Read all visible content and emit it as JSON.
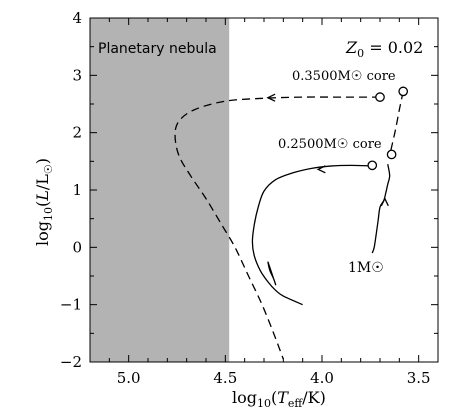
{
  "chart_data": {
    "type": "line",
    "xlabel": "log10(Teff/K)",
    "ylabel": "log10(L/L☉)",
    "xlim": [
      5.2,
      3.4
    ],
    "ylim": [
      -2,
      4
    ],
    "x_reversed": true,
    "xticks": [
      5.0,
      4.5,
      4.0,
      3.5
    ],
    "xtick_labels": [
      "5.0",
      "4.5",
      "4.0",
      "3.5"
    ],
    "yticks": [
      -2,
      -1,
      0,
      1,
      2,
      3,
      4
    ],
    "ytick_labels": [
      "−2",
      "−1",
      "0",
      "1",
      "2",
      "3",
      "4"
    ],
    "shaded_region": {
      "label": "Planetary nebula",
      "x_from": 5.2,
      "x_to": 4.48,
      "color": "#b3b3b3"
    },
    "top_right_label": "Z0 = 0.02",
    "series": [
      {
        "name": "1M☉",
        "style": "solid",
        "x": [
          3.74,
          3.73,
          3.72,
          3.71,
          3.7,
          3.68,
          3.67,
          3.66,
          3.65,
          3.66
        ],
        "y": [
          -0.1,
          0.0,
          0.22,
          0.46,
          0.7,
          0.82,
          0.95,
          1.1,
          1.25,
          1.45
        ]
      },
      {
        "name": "0.2500M☉ core",
        "style": "solid",
        "x": [
          3.75,
          3.85,
          3.95,
          4.05,
          4.15,
          4.24,
          4.3,
          4.33,
          4.35,
          4.36,
          4.35,
          4.32,
          4.28,
          4.24,
          4.2,
          4.1
        ],
        "y": [
          1.42,
          1.43,
          1.42,
          1.38,
          1.3,
          1.18,
          0.98,
          0.7,
          0.4,
          0.1,
          -0.15,
          -0.4,
          -0.6,
          -0.75,
          -0.85,
          -1.0
        ]
      },
      {
        "name": "loop",
        "style": "solid",
        "x": [
          4.28,
          4.26,
          4.24,
          4.25,
          4.27,
          4.28
        ],
        "y": [
          -0.25,
          -0.45,
          -0.65,
          -0.55,
          -0.4,
          -0.25
        ]
      },
      {
        "name": "0.3500M☉ core",
        "style": "dashed",
        "x": [
          3.7,
          3.9,
          4.1,
          4.3,
          4.5,
          4.66,
          4.74,
          4.76,
          4.74,
          4.68,
          4.6,
          4.52,
          4.45,
          4.38,
          4.31,
          4.25,
          4.2
        ],
        "y": [
          2.62,
          2.62,
          2.62,
          2.6,
          2.55,
          2.4,
          2.2,
          1.95,
          1.6,
          1.25,
          0.85,
          0.4,
          0.0,
          -0.5,
          -1.0,
          -1.5,
          -1.95
        ]
      },
      {
        "name": "branch",
        "style": "dashed",
        "x": [
          3.58,
          3.6,
          3.62,
          3.64,
          3.65
        ],
        "y": [
          2.72,
          2.4,
          2.05,
          1.75,
          1.6
        ]
      }
    ],
    "points": [
      {
        "label": "0.3500M☉ core",
        "x": 3.7,
        "y": 2.62
      },
      {
        "label": "",
        "x": 3.58,
        "y": 2.72
      },
      {
        "label": "0.2500M☉ core",
        "x": 3.74,
        "y": 1.43
      },
      {
        "label": "",
        "x": 3.64,
        "y": 1.62
      }
    ],
    "annotations": {
      "core_035": "0.3500M☉ core",
      "core_025": "0.2500M☉ core",
      "mass_label": "1M☉"
    }
  }
}
